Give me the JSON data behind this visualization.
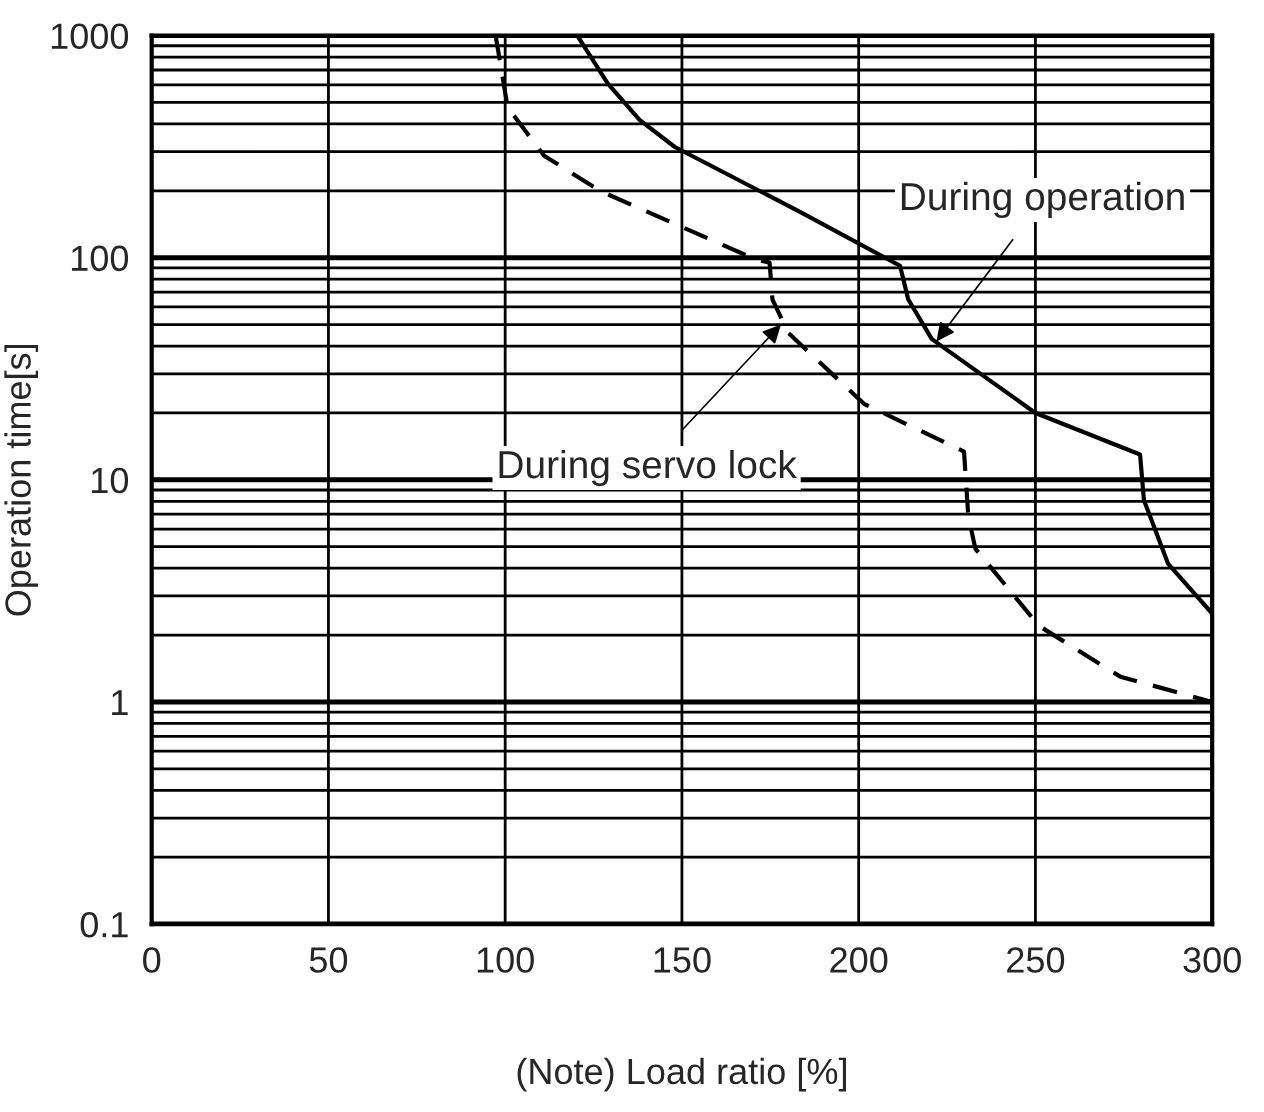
{
  "chart_data": {
    "type": "line",
    "xlabel": "(Note) Load ratio [%]",
    "ylabel": "Operation time[s]",
    "series": [
      {
        "color": "#000000",
        "line_style": "solid",
        "x": [
          120.4,
          129,
          138,
          148,
          183,
          211.7,
          214,
          220.7,
          250,
          279.6,
          280.7,
          287.5,
          300
        ],
        "values": [
          1000,
          610,
          417,
          315,
          162,
          92,
          65,
          43,
          20,
          13,
          8.1,
          4.2,
          2.5
        ]
      },
      {
        "color": "#000000",
        "line_style": "dashed",
        "x": [
          97.3,
          100.7,
          111,
          126.8,
          171,
          174.8,
          175.6,
          180,
          201.5,
          229.8,
          231,
          233,
          251,
          274,
          300
        ],
        "values": [
          1000,
          475,
          288,
          200,
          98,
          95,
          65,
          46,
          22,
          13.4,
          6.9,
          4.9,
          2.2,
          1.3,
          1.0
        ]
      }
    ],
    "annotations": [
      {
        "text": "During operation",
        "x": 222,
        "y": 42
      },
      {
        "text": "During servo lock",
        "x": 178,
        "y": 50
      }
    ],
    "log": "y",
    "grid": true,
    "marker": "none",
    "xlim": [
      0,
      300
    ],
    "xticks": [
      0,
      50,
      100,
      150,
      200,
      250,
      300
    ],
    "ylim": [
      0.1,
      1000
    ],
    "yticks": [
      0.1,
      {
        "value": 0.2,
        "label": null
      },
      {
        "value": 0.3,
        "label": null
      },
      {
        "value": 0.4,
        "label": null
      },
      {
        "value": 0.5,
        "label": null
      },
      {
        "value": 0.6,
        "label": null
      },
      {
        "value": 0.7,
        "label": null
      },
      {
        "value": 0.8,
        "label": null
      },
      {
        "value": 0.9,
        "label": null
      },
      1,
      {
        "value": 2,
        "label": null
      },
      {
        "value": 3,
        "label": null
      },
      {
        "value": 4,
        "label": null
      },
      {
        "value": 5,
        "label": null
      },
      {
        "value": 6,
        "label": null
      },
      {
        "value": 7,
        "label": null
      },
      {
        "value": 8,
        "label": null
      },
      {
        "value": 9,
        "label": null
      },
      10,
      {
        "value": 20,
        "label": null
      },
      {
        "value": 30,
        "label": null
      },
      {
        "value": 40,
        "label": null
      },
      {
        "value": 50,
        "label": null
      },
      {
        "value": 60,
        "label": null
      },
      {
        "value": 70,
        "label": null
      },
      {
        "value": 80,
        "label": null
      },
      {
        "value": 90,
        "label": null
      },
      100,
      {
        "value": 200,
        "label": null
      },
      {
        "value": 300,
        "label": null
      },
      {
        "value": 400,
        "label": null
      },
      {
        "value": 500,
        "label": null
      },
      {
        "value": 600,
        "label": null
      },
      {
        "value": 700,
        "label": null
      },
      {
        "value": 800,
        "label": null
      },
      {
        "value": 900,
        "label": null
      },
      1000
    ]
  }
}
